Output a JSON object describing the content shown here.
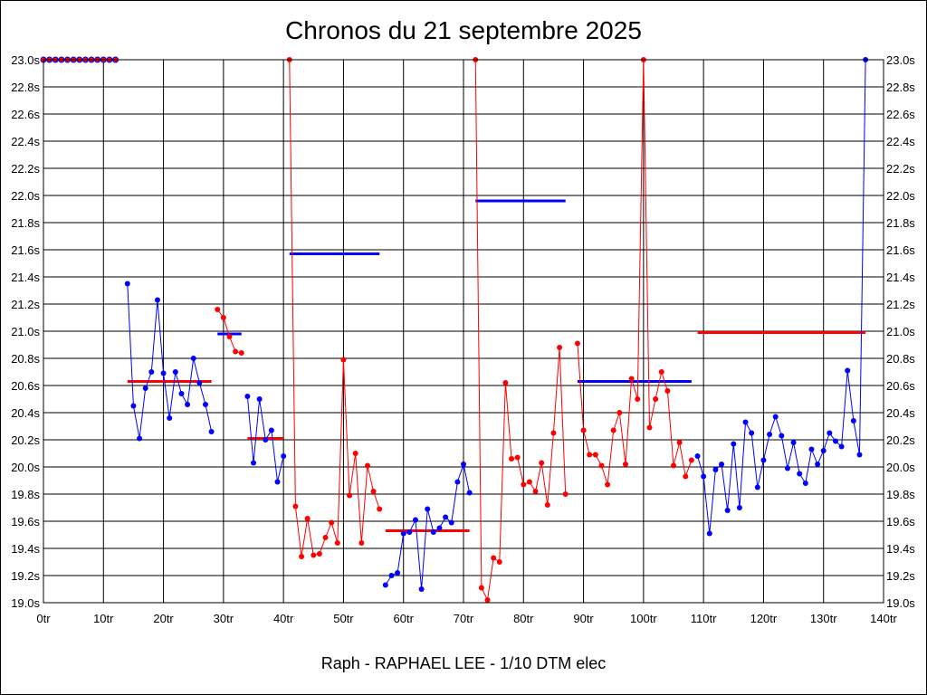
{
  "chart_data": {
    "type": "line",
    "title": "Chronos du 21 septembre 2025",
    "subtitle": "Raph - RAPHAEL LEE - 1/10 DTM elec",
    "xlim": [
      0,
      140
    ],
    "ylim": [
      19.0,
      23.0
    ],
    "x_ticks": [
      0,
      10,
      20,
      30,
      40,
      50,
      60,
      70,
      80,
      90,
      100,
      110,
      120,
      130,
      140
    ],
    "x_tick_labels": [
      "0tr",
      "10tr",
      "20tr",
      "30tr",
      "40tr",
      "50tr",
      "60tr",
      "70tr",
      "80tr",
      "90tr",
      "100tr",
      "110tr",
      "120tr",
      "130tr",
      "140tr"
    ],
    "y_ticks": [
      19.0,
      19.2,
      19.4,
      19.6,
      19.8,
      20.0,
      20.2,
      20.4,
      20.6,
      20.8,
      21.0,
      21.2,
      21.4,
      21.6,
      21.8,
      22.0,
      22.2,
      22.4,
      22.6,
      22.8,
      23.0
    ],
    "y_tick_labels": [
      "19.0s",
      "19.2s",
      "19.4s",
      "19.6s",
      "19.8s",
      "20.0s",
      "20.2s",
      "20.4s",
      "20.6s",
      "20.8s",
      "21.0s",
      "21.2s",
      "21.4s",
      "21.6s",
      "21.8s",
      "22.0s",
      "22.2s",
      "22.4s",
      "22.6s",
      "22.8s",
      "23.0s"
    ],
    "grid": true,
    "colors": {
      "blue": "#0000ff",
      "red": "#ff0000",
      "marker_pair": "#ff0000"
    },
    "top_markers": {
      "x_start": 0,
      "x_end": 12,
      "y": 23.0
    },
    "series": [
      {
        "color": "blue",
        "x": [
          14,
          15,
          16,
          17,
          18,
          19,
          20,
          21,
          22,
          23,
          24,
          25,
          26,
          27,
          28
        ],
        "y": [
          21.35,
          20.45,
          20.21,
          20.58,
          20.7,
          21.23,
          20.69,
          20.36,
          20.7,
          20.54,
          20.46,
          20.8,
          20.62,
          20.46,
          20.26
        ]
      },
      {
        "color": "red",
        "x": [
          29,
          30,
          31,
          32,
          33
        ],
        "y": [
          21.16,
          21.1,
          20.96,
          20.85,
          20.84
        ]
      },
      {
        "color": "blue",
        "x": [
          34,
          35,
          36,
          37,
          38,
          39,
          40
        ],
        "y": [
          20.52,
          20.03,
          20.5,
          20.2,
          20.27,
          19.89,
          20.08
        ]
      },
      {
        "color": "red",
        "x": [
          41,
          42,
          43,
          44,
          45,
          46,
          47,
          48,
          49,
          50,
          51,
          52,
          53,
          54,
          55,
          56
        ],
        "y": [
          23.0,
          19.71,
          19.34,
          19.62,
          19.35,
          19.36,
          19.48,
          19.59,
          19.44,
          20.79,
          19.79,
          20.1,
          19.44,
          20.01,
          19.82,
          19.69
        ]
      },
      {
        "color": "blue",
        "x": [
          57,
          58,
          59,
          60,
          61,
          62,
          63,
          64,
          65,
          66,
          67,
          68,
          69,
          70,
          71
        ],
        "y": [
          19.13,
          19.2,
          19.22,
          19.51,
          19.52,
          19.61,
          19.1,
          19.69,
          19.52,
          19.55,
          19.63,
          19.59,
          19.89,
          20.02,
          19.81
        ]
      },
      {
        "color": "red",
        "x": [
          72,
          73,
          74,
          75,
          76,
          77,
          78,
          79,
          80,
          81,
          82,
          83,
          84,
          85,
          86,
          87
        ],
        "y": [
          23.0,
          19.11,
          19.02,
          19.33,
          19.3,
          20.62,
          20.06,
          20.07,
          19.87,
          19.89,
          19.82,
          20.03,
          19.72,
          20.25,
          20.88,
          19.8
        ]
      },
      {
        "color": "red",
        "x": [
          89,
          90,
          91,
          92,
          93,
          94,
          95,
          96,
          97,
          98,
          99,
          100,
          101,
          102,
          103,
          104,
          105,
          106,
          107,
          108
        ],
        "y": [
          20.91,
          20.27,
          20.09,
          20.09,
          20.01,
          19.87,
          20.27,
          20.4,
          20.02,
          20.65,
          20.5,
          23.0,
          20.29,
          20.5,
          20.7,
          20.56,
          20.01,
          20.18,
          19.93,
          20.05
        ]
      },
      {
        "color": "blue",
        "x": [
          109,
          110,
          111,
          112,
          113,
          114,
          115,
          116,
          117,
          118,
          119,
          120,
          121,
          122,
          123,
          124,
          125,
          126,
          127,
          128,
          129,
          130,
          131,
          132,
          133,
          134,
          135,
          136,
          137
        ],
        "y": [
          20.08,
          19.93,
          19.51,
          19.98,
          20.02,
          19.68,
          20.17,
          19.7,
          20.33,
          20.25,
          19.85,
          20.05,
          20.24,
          20.37,
          20.23,
          19.99,
          20.18,
          19.95,
          19.88,
          20.13,
          20.02,
          20.12,
          20.25,
          20.19,
          20.15,
          20.71,
          20.34,
          20.09,
          23.0
        ]
      }
    ],
    "averages": [
      {
        "color": "red",
        "x": [
          14,
          28
        ],
        "y": 20.63
      },
      {
        "color": "blue",
        "x": [
          29,
          33
        ],
        "y": 20.98
      },
      {
        "color": "red",
        "x": [
          34,
          40
        ],
        "y": 20.21
      },
      {
        "color": "blue",
        "x": [
          41,
          56
        ],
        "y": 21.57
      },
      {
        "color": "red",
        "x": [
          57,
          71
        ],
        "y": 19.53
      },
      {
        "color": "blue",
        "x": [
          72,
          87
        ],
        "y": 21.96
      },
      {
        "color": "blue",
        "x": [
          89,
          108
        ],
        "y": 20.63
      },
      {
        "color": "red",
        "x": [
          109,
          137
        ],
        "y": 20.99
      }
    ]
  }
}
